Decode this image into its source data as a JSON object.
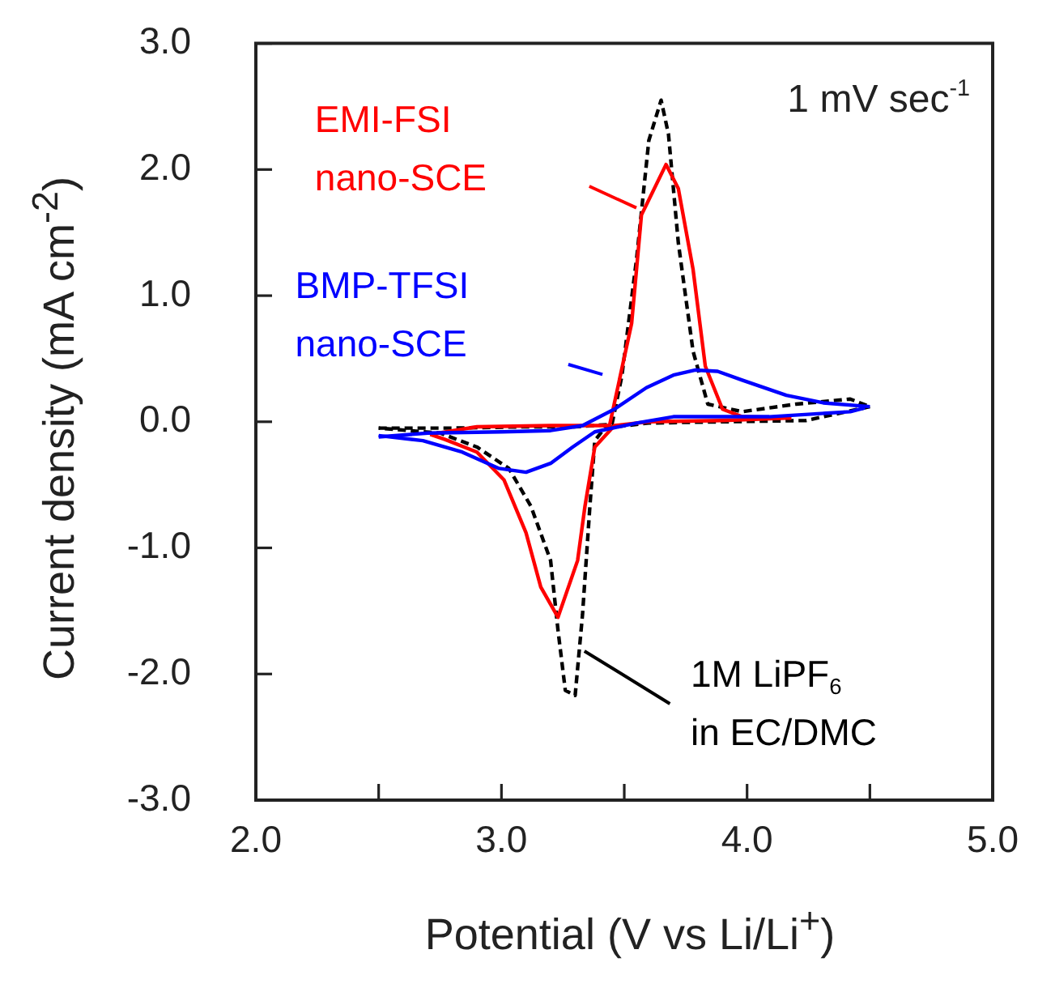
{
  "chart_data": {
    "type": "line",
    "xlabel": "Potential (V vs Li/Li$^{+}$)",
    "ylabel": "Current density (mA cm$^{-2}$)",
    "xlim": [
      2.0,
      5.0
    ],
    "xticks": [
      {
        "value": 2,
        "label": "2.0"
      },
      {
        "value": 2.5,
        "label": null
      },
      {
        "value": 3,
        "label": "3.0"
      },
      {
        "value": 3.5,
        "label": null
      },
      {
        "value": 4,
        "label": "4.0"
      },
      {
        "value": 4.5,
        "label": null
      },
      {
        "value": 5,
        "label": "5.0"
      }
    ],
    "ylim": [
      -3.0,
      3.0
    ],
    "yticks": [
      {
        "value": -3,
        "label": "-3.0"
      },
      {
        "value": -2,
        "label": "-2.0"
      },
      {
        "value": -1,
        "label": "-1.0"
      },
      {
        "value": 0,
        "label": "0.0"
      },
      {
        "value": 1,
        "label": "1.0"
      },
      {
        "value": 2,
        "label": "2.0"
      },
      {
        "value": 3,
        "label": "3.0"
      }
    ],
    "grid": false,
    "legend": "bottom right",
    "marker": "none",
    "line_style": "solid",
    "annotations": [
      "1 mV sec$^{-1}$"
    ],
    "series": [
      {
        "name": "1M LiPF$_{6}$\nin EC/DMC",
        "color": "#000000",
        "line_style": "dashed",
        "x": [
          2.5,
          2.8,
          3.1,
          3.3,
          3.45,
          3.49,
          3.55,
          3.6,
          3.65,
          3.68,
          3.72,
          3.78,
          3.84,
          3.98,
          4.2,
          4.42,
          4.5
        ],
        "values": [
          -0.05,
          -0.05,
          -0.04,
          -0.04,
          -0.02,
          0.36,
          1.29,
          2.23,
          2.55,
          2.28,
          1.42,
          0.56,
          0.14,
          0.08,
          0.14,
          0.18,
          0.12
        ]
      },
      {
        "color": "#000000",
        "line_style": "dashed",
        "x": [
          4.5,
          4.24,
          3.9,
          3.6,
          3.42,
          3.38,
          3.36,
          3.33,
          3.3,
          3.26,
          3.23,
          3.2,
          3.12,
          3.03,
          2.9,
          2.75,
          2.5
        ],
        "values": [
          0.12,
          0.01,
          0.0,
          -0.01,
          -0.05,
          -0.15,
          -0.67,
          -1.53,
          -2.17,
          -2.13,
          -1.65,
          -1.1,
          -0.67,
          -0.37,
          -0.2,
          -0.09,
          -0.05
        ]
      },
      {
        "name": "EMI-FSI\nnano-SCE",
        "color": "#ff0000",
        "x": [
          2.71,
          2.9,
          3.2,
          3.44,
          3.53,
          3.57,
          3.67,
          3.72,
          3.78,
          3.83,
          3.9,
          3.98,
          4.18
        ],
        "values": [
          -0.1,
          -0.04,
          -0.03,
          -0.03,
          0.78,
          1.64,
          2.04,
          1.85,
          1.21,
          0.44,
          0.1,
          0.04,
          0.03
        ]
      },
      {
        "color": "#ff0000",
        "x": [
          4.18,
          3.9,
          3.6,
          3.46,
          3.38,
          3.34,
          3.31,
          3.23,
          3.16,
          3.1,
          3.01,
          2.9,
          2.77,
          2.71
        ],
        "values": [
          0.03,
          0.01,
          0.0,
          -0.03,
          -0.2,
          -0.67,
          -1.1,
          -1.55,
          -1.31,
          -0.88,
          -0.46,
          -0.24,
          -0.14,
          -0.1
        ]
      },
      {
        "name": "BMP-TFSI\nnano-SCE",
        "color": "#0000ff",
        "x": [
          2.5,
          2.7,
          3.0,
          3.2,
          3.33,
          3.46,
          3.59,
          3.7,
          3.79,
          3.88,
          3.98,
          4.16,
          4.31,
          4.5
        ],
        "values": [
          -0.12,
          -0.09,
          -0.08,
          -0.07,
          -0.03,
          0.1,
          0.27,
          0.37,
          0.41,
          0.4,
          0.33,
          0.21,
          0.15,
          0.12
        ]
      },
      {
        "color": "#0000ff",
        "x": [
          4.48,
          4.42,
          4.09,
          3.7,
          3.55,
          3.38,
          3.29,
          3.2,
          3.1,
          2.99,
          2.84,
          2.68,
          2.5
        ],
        "values": [
          0.11,
          0.08,
          0.04,
          0.04,
          -0.01,
          -0.08,
          -0.2,
          -0.33,
          -0.4,
          -0.37,
          -0.24,
          -0.15,
          -0.11
        ]
      }
    ]
  }
}
